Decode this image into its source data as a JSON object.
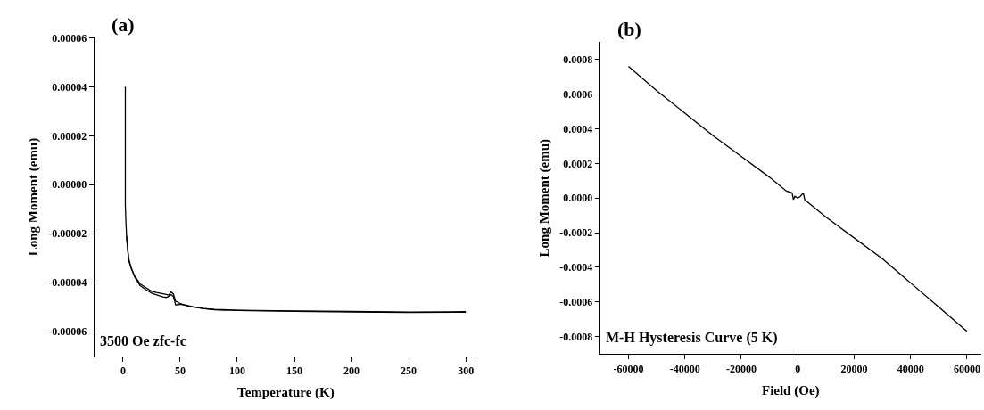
{
  "chart_data": [
    {
      "type": "line",
      "title": "(a)",
      "xlabel": "Temperature (K)",
      "ylabel": "Long Moment (emu)",
      "annotations": [
        "3500 Oe zfc-fc"
      ],
      "xlim": [
        -25,
        310
      ],
      "xticks": [
        0,
        50,
        100,
        150,
        200,
        250,
        300
      ],
      "ylim": [
        -7e-05,
        6e-05
      ],
      "yticks": [
        {
          "value": -6e-05,
          "label": "-0.00006"
        },
        {
          "value": -4e-05,
          "label": "-0.00004"
        },
        {
          "value": -2e-05,
          "label": "-0.00002"
        },
        {
          "value": 0,
          "label": "0.00000"
        },
        {
          "value": 2e-05,
          "label": "0.00002"
        },
        {
          "value": 4e-05,
          "label": "0.00004"
        },
        {
          "value": 6e-05,
          "label": "0.00006"
        }
      ],
      "marker": "none",
      "line_style": "solid",
      "series": [
        {
          "color": "#000000",
          "x": [
            2,
            2,
            2.5,
            3,
            4,
            5,
            7,
            10,
            15,
            20,
            25,
            30,
            35,
            38,
            40,
            42,
            44,
            46,
            48,
            50,
            55,
            60,
            70,
            80,
            100,
            150,
            200,
            250,
            300
          ],
          "values": [
            4e-05,
            -8e-06,
            -1.5e-05,
            -2e-05,
            -2.6e-05,
            -3e-05,
            -3.4e-05,
            -3.7e-05,
            -4.05e-05,
            -4.2e-05,
            -4.35e-05,
            -4.4e-05,
            -4.45e-05,
            -4.48e-05,
            -4.5e-05,
            -4.37e-05,
            -4.45e-05,
            -4.75e-05,
            -4.8e-05,
            -4.85e-05,
            -4.92e-05,
            -4.98e-05,
            -5.05e-05,
            -5.09e-05,
            -5.12e-05,
            -5.15e-05,
            -5.17e-05,
            -5.2e-05,
            -5.18e-05
          ]
        },
        {
          "color": "#000000",
          "x": [
            3,
            5,
            10,
            15,
            20,
            25,
            30,
            35,
            38,
            40,
            42,
            44,
            46,
            48,
            50,
            55,
            60,
            70,
            80,
            100,
            150,
            200,
            250,
            300
          ],
          "values": [
            -2.1e-05,
            -3.1e-05,
            -3.75e-05,
            -4.12e-05,
            -4.28e-05,
            -4.42e-05,
            -4.5e-05,
            -4.58e-05,
            -4.6e-05,
            -4.55e-05,
            -4.48e-05,
            -4.55e-05,
            -4.9e-05,
            -4.9e-05,
            -4.88e-05,
            -4.92e-05,
            -4.97e-05,
            -5.05e-05,
            -5.1e-05,
            -5.13e-05,
            -5.17e-05,
            -5.19e-05,
            -5.21e-05,
            -5.2e-05
          ]
        }
      ]
    },
    {
      "type": "line",
      "title": "(b)",
      "xlabel": "Field (Oe)",
      "ylabel": "Long Moment (emu)",
      "annotations": [
        "M-H Hysteresis Curve (5 K)"
      ],
      "xlim": [
        -70000,
        65000
      ],
      "xticks": [
        -60000,
        -40000,
        -20000,
        0,
        20000,
        40000,
        60000
      ],
      "ylim": [
        -0.0009,
        0.0009
      ],
      "yticks": [
        {
          "value": -0.0008,
          "label": "-0.0008"
        },
        {
          "value": -0.0006,
          "label": "-0.0006"
        },
        {
          "value": -0.0004,
          "label": "-0.0004"
        },
        {
          "value": -0.0002,
          "label": "-0.0002"
        },
        {
          "value": 0,
          "label": "0.0000"
        },
        {
          "value": 0.0002,
          "label": "0.0002"
        },
        {
          "value": 0.0004,
          "label": "0.0004"
        },
        {
          "value": 0.0006,
          "label": "0.0006"
        },
        {
          "value": 0.0008,
          "label": "0.0008"
        }
      ],
      "marker": "none",
      "line_style": "solid",
      "series": [
        {
          "color": "#000000",
          "x": [
            -60000,
            -50000,
            -40000,
            -30000,
            -20000,
            -10000,
            -4000,
            -2000,
            -1500,
            -1000,
            0,
            1000,
            2000,
            2500,
            4000,
            10000,
            20000,
            30000,
            40000,
            50000,
            60000
          ],
          "values": [
            0.00076,
            0.00062,
            0.00049,
            0.00036,
            0.00024,
            0.00012,
            4e-05,
            3e-05,
            -1e-05,
            1e-05,
            0.0,
            1e-05,
            3e-05,
            -1e-05,
            -3e-05,
            -0.00011,
            -0.00023,
            -0.00035,
            -0.00049,
            -0.00063,
            -0.00077
          ]
        }
      ]
    }
  ]
}
